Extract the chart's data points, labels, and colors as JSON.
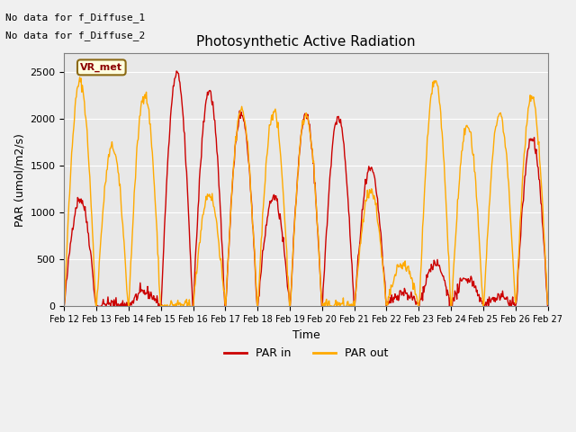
{
  "title": "Photosynthetic Active Radiation",
  "ylabel": "PAR (umol/m2/s)",
  "xlabel": "Time",
  "annotation_line1": "No data for f_Diffuse_1",
  "annotation_line2": "No data for f_Diffuse_2",
  "box_label": "VR_met",
  "legend_par_in": "PAR in",
  "legend_par_out": "PAR out",
  "color_par_in": "#cc0000",
  "color_par_out": "#ffaa00",
  "ylim": [
    0,
    2700
  ],
  "background_color": "#e8e8e8",
  "fig_facecolor": "#f0f0f0",
  "x_tick_labels": [
    "Feb 12",
    "Feb 13",
    "Feb 14",
    "Feb 15",
    "Feb 16",
    "Feb 17",
    "Feb 18",
    "Feb 19",
    "Feb 20",
    "Feb 21",
    "Feb 22",
    "Feb 23",
    "Feb 24",
    "Feb 25",
    "Feb 26",
    "Feb 27"
  ],
  "n_days": 15,
  "pts_per_day": 48,
  "par_in_peaks": [
    1150,
    30,
    150,
    2480,
    2300,
    2060,
    1170,
    2050,
    2020,
    1460,
    150,
    450,
    300,
    100,
    1800
  ],
  "par_out_peaks": [
    2400,
    1700,
    2270,
    20,
    1200,
    2100,
    2080,
    2050,
    20,
    1240,
    450,
    2410,
    1920,
    2060,
    2220
  ]
}
